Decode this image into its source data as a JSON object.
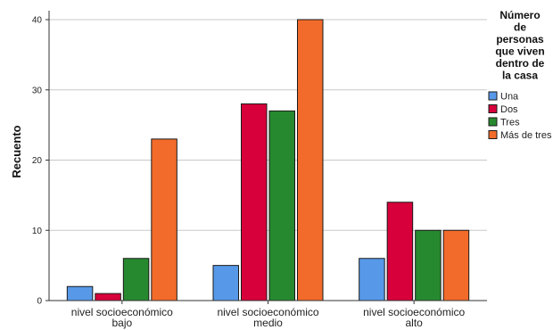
{
  "chart_data": {
    "type": "bar",
    "ylabel": "Recuento",
    "xlabel": "",
    "ylim": [
      0,
      40
    ],
    "yticks": [
      0,
      10,
      20,
      30,
      40
    ],
    "grid": true,
    "legend_position": "right",
    "legend_title": [
      "Número",
      "de",
      "personas",
      "que viven",
      "dentro de",
      "la casa"
    ],
    "categories": [
      [
        "nivel socioeconómico",
        "bajo"
      ],
      [
        "nivel socioeconómico",
        "medio"
      ],
      [
        "nivel socioeconómico",
        "alto"
      ]
    ],
    "series": [
      {
        "name": "Una",
        "color": "#5799e8",
        "values": [
          2,
          5,
          6
        ]
      },
      {
        "name": "Dos",
        "color": "#d7003a",
        "values": [
          1,
          28,
          14
        ]
      },
      {
        "name": "Tres",
        "color": "#27892f",
        "values": [
          6,
          27,
          10
        ]
      },
      {
        "name": "Más de tres",
        "color": "#f26b2a",
        "values": [
          23,
          40,
          10
        ]
      }
    ]
  }
}
